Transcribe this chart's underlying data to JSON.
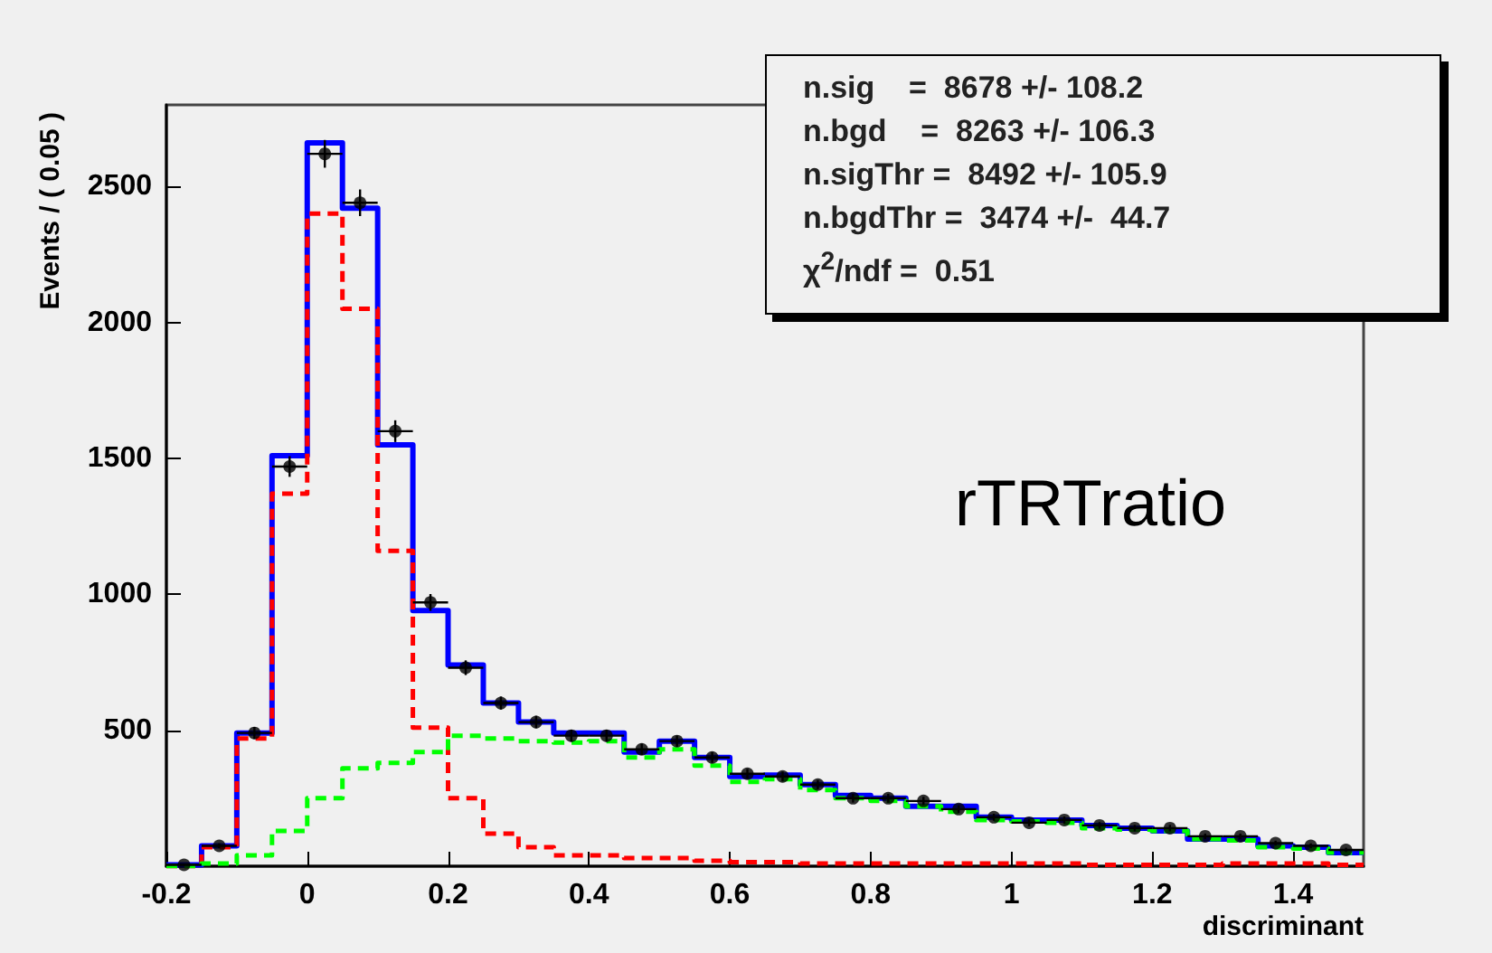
{
  "chart_data": {
    "type": "histogram",
    "xlabel": "discriminant",
    "ylabel": "Events / ( 0.05 )",
    "bins": [
      -0.2,
      -0.15,
      -0.1,
      -0.05,
      0,
      0.05,
      0.1,
      0.15,
      0.2,
      0.25,
      0.3,
      0.35,
      0.4,
      0.45,
      0.5,
      0.55,
      0.6,
      0.65,
      0.7,
      0.75,
      0.8,
      0.85,
      0.9,
      0.95,
      1.0,
      1.05,
      1.1,
      1.15,
      1.2,
      1.25,
      1.3,
      1.35,
      1.4,
      1.45,
      1.5
    ],
    "series": [
      {
        "color": "#0000ff",
        "line_style": "solid",
        "values": [
          5,
          75,
          490,
          1510,
          2660,
          2420,
          1550,
          940,
          740,
          600,
          530,
          490,
          490,
          420,
          460,
          400,
          330,
          335,
          300,
          260,
          250,
          220,
          220,
          180,
          170,
          170,
          150,
          140,
          130,
          100,
          100,
          75,
          70,
          50
        ]
      },
      {
        "color": "#ff0000",
        "line_style": "dashed",
        "values": [
          0,
          70,
          470,
          1370,
          2400,
          2050,
          1160,
          510,
          250,
          120,
          70,
          40,
          40,
          30,
          30,
          20,
          15,
          15,
          10,
          10,
          10,
          10,
          10,
          10,
          10,
          10,
          5,
          5,
          5,
          5,
          10,
          10,
          10,
          5
        ]
      },
      {
        "color": "#00ff00",
        "line_style": "dashed",
        "values": [
          0,
          10,
          40,
          130,
          250,
          360,
          380,
          420,
          480,
          470,
          460,
          455,
          460,
          400,
          430,
          370,
          310,
          320,
          280,
          250,
          240,
          220,
          200,
          170,
          165,
          160,
          140,
          135,
          130,
          100,
          95,
          70,
          65,
          50
        ]
      },
      {
        "type": "scatter",
        "color": "#000000",
        "marker": "circle",
        "x": [
          -0.175,
          -0.125,
          -0.075,
          -0.025,
          0.025,
          0.075,
          0.125,
          0.175,
          0.225,
          0.275,
          0.325,
          0.375,
          0.425,
          0.475,
          0.525,
          0.575,
          0.625,
          0.675,
          0.725,
          0.775,
          0.825,
          0.875,
          0.925,
          0.975,
          1.025,
          1.075,
          1.125,
          1.175,
          1.225,
          1.275,
          1.325,
          1.375,
          1.425,
          1.475
        ],
        "values": [
          5,
          75,
          490,
          1470,
          2620,
          2440,
          1600,
          970,
          730,
          600,
          530,
          480,
          480,
          430,
          460,
          400,
          340,
          330,
          300,
          250,
          250,
          240,
          210,
          180,
          160,
          170,
          150,
          140,
          140,
          110,
          110,
          85,
          75,
          60
        ],
        "errors": [
          2,
          9,
          22,
          38,
          51,
          49,
          40,
          31,
          27,
          24,
          23,
          22,
          22,
          21,
          21,
          20,
          18,
          18,
          17,
          16,
          16,
          15,
          14,
          13,
          13,
          13,
          12,
          12,
          12,
          10,
          10,
          9,
          9,
          8
        ],
        "xerrors": [
          0.025,
          0.025,
          0.025,
          0.025,
          0.025,
          0.025,
          0.025,
          0.025,
          0.025,
          0.025,
          0.025,
          0.025,
          0.025,
          0.025,
          0.025,
          0.025,
          0.025,
          0.025,
          0.025,
          0.025,
          0.025,
          0.025,
          0.025,
          0.025,
          0.025,
          0.025,
          0.025,
          0.025,
          0.025,
          0.025,
          0.025,
          0.025,
          0.025,
          0.025
        ]
      }
    ],
    "xlim": [
      -0.2,
      1.5
    ],
    "xticks": [
      -0.2,
      0,
      0.2,
      0.4,
      0.6,
      0.8,
      1,
      1.2,
      1.4
    ],
    "ylim": [
      0,
      2800
    ],
    "yticks": [
      500,
      1000,
      1500,
      2000,
      2500
    ],
    "grid": false,
    "annotations": [
      "n.sig    =  8678 +/- 108.2",
      "n.bgd    =  8263 +/- 106.3",
      "n.sigThr =  8492 +/- 105.9",
      "n.bgdThr =  3474 +/-  44.7",
      "χ$^{2}$/ndf =  0.51",
      "rTRTratio"
    ]
  }
}
